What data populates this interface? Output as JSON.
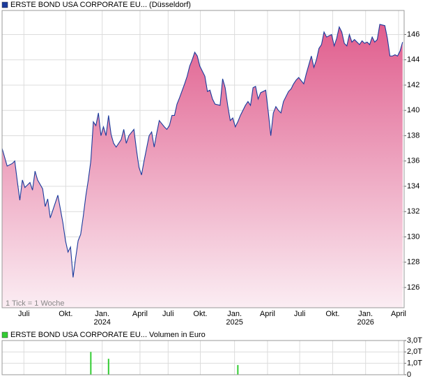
{
  "chart_data": [
    {
      "type": "line",
      "title": "ERSTE BOND USA CORPORATE EU... (Düsseldorf)",
      "note": "1 Tick = 1 Woche",
      "x": [
        0,
        1,
        2,
        4,
        5,
        6,
        7,
        8,
        9,
        11,
        12,
        13,
        14,
        16,
        17,
        18,
        19,
        21,
        22,
        23,
        24,
        25,
        26,
        27,
        28,
        29,
        30,
        31,
        32,
        33,
        34,
        35,
        36,
        37,
        38,
        39,
        40,
        41,
        42,
        43,
        44,
        45,
        47,
        48,
        49,
        50,
        52,
        53,
        54,
        55,
        56,
        58,
        59,
        60,
        61,
        62,
        64,
        65,
        66,
        67,
        68,
        69,
        70,
        72,
        73,
        74,
        75,
        76,
        77,
        78,
        80,
        81,
        82,
        83,
        84,
        86,
        87,
        88,
        89,
        90,
        91,
        92,
        93,
        94,
        96,
        97,
        98,
        99,
        100,
        101,
        102,
        104,
        105,
        106,
        107,
        108,
        109,
        110,
        111,
        113,
        114,
        115,
        116,
        117,
        119,
        120,
        121,
        122,
        123,
        124,
        125,
        126,
        127,
        128,
        130,
        131,
        132,
        133,
        134,
        135,
        136,
        137,
        138,
        139,
        141,
        142,
        143,
        144,
        145,
        146,
        147,
        148,
        149,
        151,
        152,
        153,
        154,
        155,
        156,
        157,
        158
      ],
      "series": [
        {
          "color": "#1a3a9c",
          "area_gradient": [
            "#e05d8d",
            "#fbedf3"
          ],
          "values": [
            137.0,
            136.3,
            135.6,
            135.8,
            136.0,
            134.4,
            132.9,
            134.5,
            133.9,
            134.3,
            133.7,
            135.2,
            134.5,
            133.8,
            132.4,
            133.0,
            131.5,
            132.7,
            133.3,
            132.2,
            131.1,
            129.7,
            128.8,
            129.2,
            126.8,
            128.3,
            129.7,
            130.2,
            131.6,
            133.2,
            134.5,
            136.0,
            139.1,
            138.8,
            139.8,
            138.0,
            138.7,
            138.0,
            139.6,
            138.1,
            137.4,
            137.1,
            137.7,
            138.5,
            137.4,
            138.0,
            138.5,
            136.9,
            135.5,
            134.9,
            136.0,
            138.0,
            138.3,
            137.1,
            138.2,
            139.2,
            138.7,
            138.5,
            138.8,
            139.6,
            139.6,
            140.5,
            141.0,
            142.1,
            142.7,
            143.5,
            144.0,
            144.6,
            144.3,
            143.5,
            142.7,
            141.5,
            141.6,
            140.9,
            140.5,
            140.4,
            142.5,
            141.8,
            140.4,
            139.2,
            139.4,
            138.7,
            139.1,
            139.6,
            140.4,
            140.7,
            140.4,
            141.8,
            141.9,
            140.9,
            141.4,
            141.6,
            139.9,
            138.0,
            139.8,
            140.3,
            140.0,
            139.8,
            140.7,
            141.5,
            141.7,
            142.1,
            142.4,
            142.6,
            142.1,
            142.9,
            143.6,
            144.3,
            143.4,
            144.0,
            144.9,
            145.2,
            146.2,
            145.8,
            146.0,
            145.1,
            145.7,
            146.6,
            146.2,
            145.3,
            145.1,
            146.0,
            145.4,
            145.6,
            145.2,
            145.5,
            145.3,
            145.4,
            145.2,
            145.8,
            145.4,
            145.6,
            146.8,
            146.7,
            145.7,
            144.3,
            144.3,
            144.4,
            144.3,
            144.7,
            145.4
          ]
        }
      ],
      "xlim": [
        0,
        158.6
      ],
      "xticks": [
        {
          "value": 8.6,
          "label": "Juli"
        },
        {
          "value": 25.1,
          "label": "Okt."
        },
        {
          "value": 39.5,
          "label": "Jan."
        },
        {
          "value": 54.4,
          "label": "April"
        },
        {
          "value": 65.5,
          "label": "Juli"
        },
        {
          "value": 78.2,
          "label": "Okt."
        },
        {
          "value": 91.7,
          "label": "Jan."
        },
        {
          "value": 104.7,
          "label": "April"
        },
        {
          "value": 117.4,
          "label": "Juli"
        },
        {
          "value": 130.4,
          "label": "Okt."
        },
        {
          "value": 143.4,
          "label": "Jan."
        },
        {
          "value": 156.4,
          "label": "April"
        }
      ],
      "xtick_years": [
        {
          "value": 39.5,
          "label": "2024"
        },
        {
          "value": 91.7,
          "label": "2025"
        },
        {
          "value": 143.4,
          "label": "2026"
        }
      ],
      "ylim": [
        124.4,
        147.9
      ],
      "yticks": [
        126,
        128,
        130,
        132,
        134,
        136,
        138,
        140,
        142,
        144,
        146
      ],
      "grid": true
    },
    {
      "type": "bar",
      "title": "ERSTE BOND USA CORPORATE EU... Volumen in Euro",
      "x": [
        35,
        42,
        93
      ],
      "values": [
        2.0,
        1.4,
        0.85
      ],
      "color": "#33cc33",
      "xlim": [
        0,
        158.6
      ],
      "ylim": [
        0,
        3
      ],
      "yticks": [
        0,
        {
          "value": 1,
          "label": "1,0T"
        },
        {
          "value": 2,
          "label": "2,0T"
        },
        {
          "value": 3,
          "label": "3,0T"
        }
      ],
      "grid": true
    }
  ]
}
